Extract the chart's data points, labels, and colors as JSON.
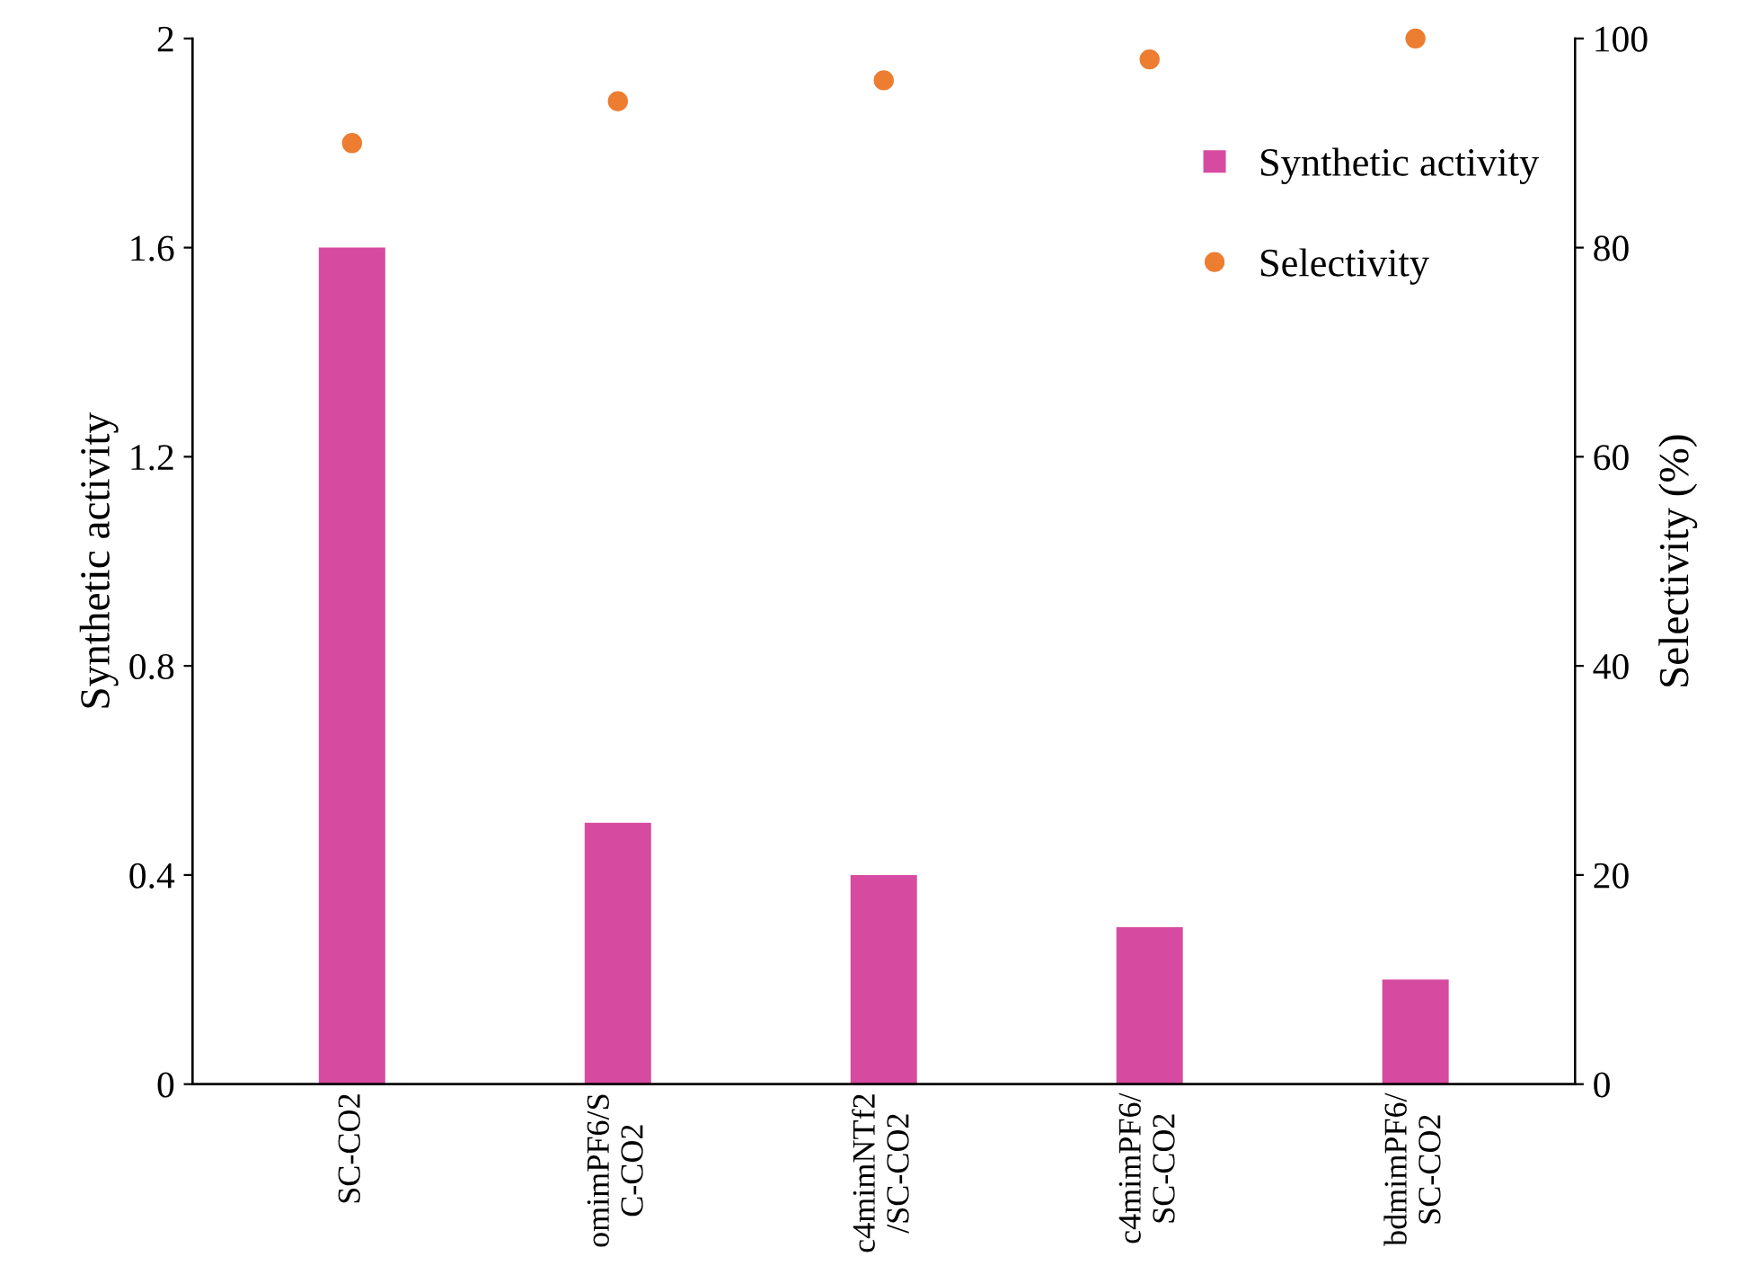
{
  "chart_data": {
    "type": "bar",
    "ylabel": "Synthetic activity",
    "y2label": "Selectivity (%)",
    "categories": [
      "SC-CO2",
      "omimPF6/S\nC-CO2",
      "c4mimNTf2\n/SC-CO2",
      "c4mimPF6/\nSC-CO2",
      "bdmimPF6/\nSC-CO2"
    ],
    "series": [
      {
        "name": "Synthetic activity",
        "color": "#d64ba0",
        "values": [
          1.6,
          0.5,
          0.4,
          0.3,
          0.2
        ]
      },
      {
        "name": "Selectivity",
        "type": "scatter",
        "axis": "y2",
        "marker": "circle",
        "color": "#ed7d31",
        "values": [
          90,
          94,
          96,
          98,
          100
        ]
      }
    ],
    "ylim": [
      0,
      2
    ],
    "yticks": [
      0,
      0.4,
      0.8,
      1.2,
      1.6,
      2
    ],
    "y2lim": [
      0,
      100
    ],
    "y2ticks": [
      0,
      20,
      40,
      60,
      80,
      100
    ],
    "grid": false,
    "legend": "top right"
  }
}
